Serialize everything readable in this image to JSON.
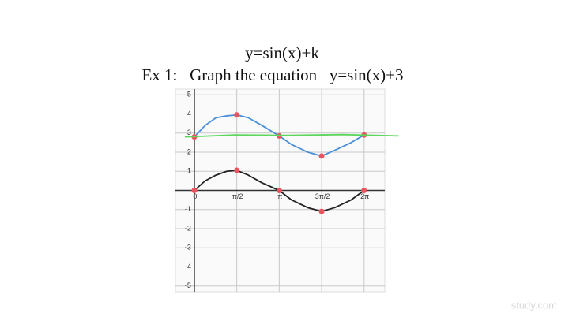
{
  "chart_data": {
    "type": "line",
    "title": "y=sin(x)+k",
    "subtitle": "Ex 1:   Graph the equation   y=sin(x)+3",
    "watermark": "study.com",
    "xlim": [
      -0.7,
      7.05
    ],
    "ylim": [
      -5.3,
      5.3
    ],
    "xticks": [
      0,
      {
        "value": 1.5708,
        "label": "π/2"
      },
      {
        "value": 3.1416,
        "label": "π"
      },
      {
        "value": 4.7124,
        "label": "3π/2"
      },
      {
        "value": 6.2832,
        "label": "2π"
      }
    ],
    "yticks": [
      -5,
      -4,
      -3,
      -2,
      -1,
      1,
      2,
      3,
      4,
      5
    ],
    "grid": true,
    "series": [
      {
        "color": "#4a90d9",
        "markers": true,
        "x": [
          0,
          0.4,
          0.8,
          1.2,
          1.5708,
          2.0,
          2.5,
          3.1416,
          3.6,
          4.2,
          4.7124,
          5.2,
          5.8,
          6.2832
        ],
        "values": [
          2.8,
          3.4,
          3.8,
          3.9,
          3.95,
          3.8,
          3.4,
          2.85,
          2.4,
          2.0,
          1.8,
          2.1,
          2.5,
          2.9
        ]
      },
      {
        "color": "#222222",
        "markers": true,
        "x": [
          0,
          0.4,
          0.8,
          1.2,
          1.5708,
          2.0,
          2.5,
          3.1416,
          3.6,
          4.2,
          4.7124,
          5.2,
          5.8,
          6.2832
        ],
        "values": [
          0,
          0.5,
          0.8,
          1.0,
          1.05,
          0.8,
          0.4,
          0,
          -0.5,
          -0.9,
          -1.1,
          -0.9,
          -0.5,
          0
        ]
      },
      {
        "color": "#5cd65c",
        "markers": false,
        "x": [
          -0.35,
          1.5,
          3.5,
          5.5,
          7.57
        ],
        "values": [
          2.8,
          2.9,
          2.88,
          2.92,
          2.85
        ]
      }
    ]
  }
}
